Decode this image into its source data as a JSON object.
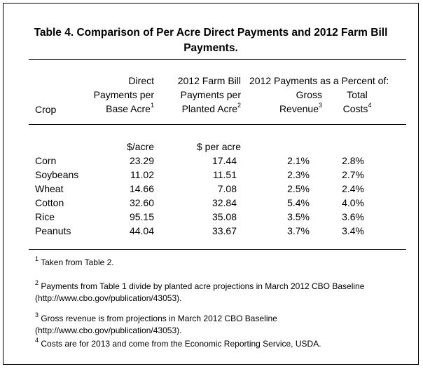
{
  "table": {
    "title": "Table 4.  Comparison of Per Acre Direct Payments and 2012 Farm Bill Payments.",
    "headers": {
      "crop": "Crop",
      "direct_line1": "Direct",
      "direct_line2": "Payments per",
      "direct_line3": "Base Acre",
      "direct_sup": "1",
      "farmbill_line1": "2012 Farm Bill",
      "farmbill_line2": "Payments per",
      "farmbill_line3": "Planted Acre",
      "farmbill_sup": "2",
      "percent_group": "2012 Payments as a Percent of:",
      "gross_line1": "Gross",
      "gross_line2": "Revenue",
      "gross_sup": "3",
      "total_line1": "Total",
      "total_line2": "Costs",
      "total_sup": "4"
    },
    "units": {
      "direct": "$/acre",
      "farmbill": "$ per acre"
    },
    "rows": [
      {
        "crop": "Corn",
        "direct": "23.29",
        "farmbill": "17.44",
        "gross": "2.1%",
        "total": "2.8%"
      },
      {
        "crop": "Soybeans",
        "direct": "11.02",
        "farmbill": "11.51",
        "gross": "2.3%",
        "total": "2.7%"
      },
      {
        "crop": "Wheat",
        "direct": "14.66",
        "farmbill": "7.08",
        "gross": "2.5%",
        "total": "2.4%"
      },
      {
        "crop": "Cotton",
        "direct": "32.60",
        "farmbill": "32.84",
        "gross": "5.4%",
        "total": "4.0%"
      },
      {
        "crop": "Rice",
        "direct": "95.15",
        "farmbill": "35.08",
        "gross": "3.5%",
        "total": "3.6%"
      },
      {
        "crop": "Peanuts",
        "direct": "44.04",
        "farmbill": "33.67",
        "gross": "3.7%",
        "total": "3.4%"
      }
    ],
    "footnotes": [
      {
        "mark": "1",
        "text": " Taken from Table 2."
      },
      {
        "mark": "2",
        "text": " Payments from Table 1 divide by planted acre projections in March 2012 CBO Baseline (http://www.cbo.gov/publication/43053)."
      },
      {
        "mark": "3",
        "text": " Gross revenue is from projections in March 2012 CBO Baseline (http://www.cbo.gov/publication/43053)."
      },
      {
        "mark": "4",
        "text": "  Costs are for 2013 and come from the  Economic Reporting Service, USDA."
      }
    ]
  }
}
